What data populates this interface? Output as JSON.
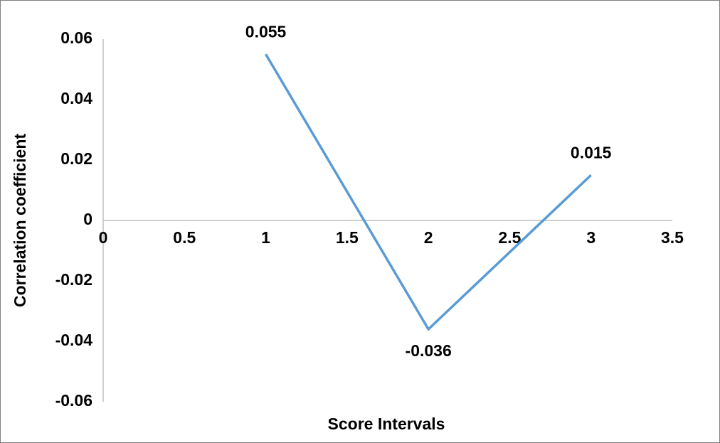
{
  "chart_data": {
    "type": "line",
    "x_label": "Score Intervals",
    "y_label": "Correlation coefficient",
    "x": [
      1,
      2,
      3
    ],
    "series": [
      {
        "name": "Correlation coefficient",
        "color": "#5b9bd5",
        "values": [
          0.055,
          -0.036,
          0.015
        ]
      }
    ],
    "xlim": [
      0,
      3.5
    ],
    "xticks": [
      0,
      0.5,
      1,
      1.5,
      2,
      2.5,
      3,
      3.5
    ],
    "ylim": [
      -0.06,
      0.06
    ],
    "yticks": [
      -0.06,
      -0.04,
      -0.02,
      0,
      0.02,
      0.04,
      0.06
    ],
    "grid": false,
    "data_labels": true
  }
}
